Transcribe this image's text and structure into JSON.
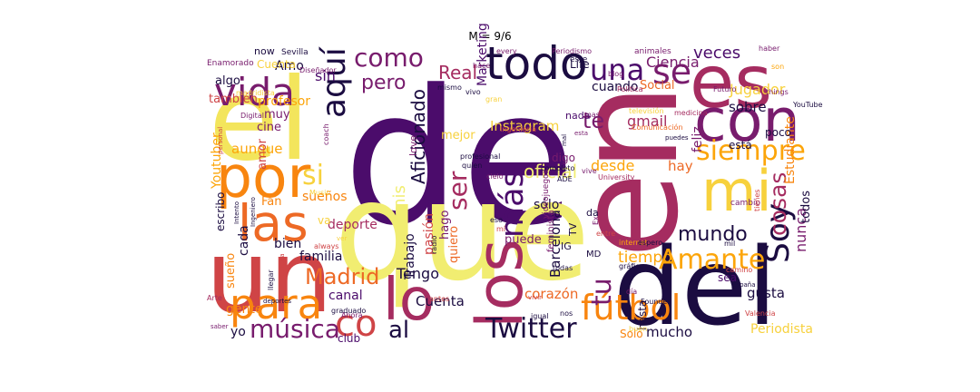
{
  "title": "M = 9/6",
  "palette": {
    "deep_purple": "#4b0c6b",
    "plum": "#781c6d",
    "magenta": "#a52c60",
    "crimson": "#cf4446",
    "orange": "#ed6925",
    "amber": "#fb9b06",
    "gold": "#f7d13d",
    "pale_yellow": "#fcffa4",
    "black": "#000004",
    "navy": "#1b0c41"
  },
  "words": [
    {
      "text": "de",
      "color": "#4b0c6b"
    },
    {
      "text": "en",
      "color": "#a52c60"
    },
    {
      "text": "que",
      "color": "#f1ed71"
    },
    {
      "text": "el",
      "color": "#f3e55c"
    },
    {
      "text": "del",
      "color": "#1b0c41"
    },
    {
      "text": "un",
      "color": "#cf4446"
    },
    {
      "text": "por",
      "color": "#f8850f"
    },
    {
      "text": "es",
      "color": "#a52c60"
    },
    {
      "text": "con",
      "color": "#781c6d"
    },
    {
      "text": "mi",
      "color": "#f7d13d"
    },
    {
      "text": "los",
      "color": "#a52c60"
    },
    {
      "text": "las",
      "color": "#ed6925"
    },
    {
      "text": "todo",
      "color": "#1b0c41"
    },
    {
      "text": "vida",
      "color": "#781c6d"
    },
    {
      "text": "una",
      "color": "#4b0c6b"
    },
    {
      "text": "se",
      "color": "#781c6d"
    },
    {
      "text": "para",
      "color": "#f8850f"
    },
    {
      "text": "lo",
      "color": "#a52c60"
    },
    {
      "text": "co",
      "color": "#cf4446"
    },
    {
      "text": "al",
      "color": "#1b0c41"
    },
    {
      "text": "música",
      "color": "#781c6d"
    },
    {
      "text": "Twitter",
      "color": "#1b0c41"
    },
    {
      "text": "fútbol",
      "color": "#f8850f"
    },
    {
      "text": "tu",
      "color": "#781c6d"
    },
    {
      "text": "más",
      "color": "#4b0c6b"
    },
    {
      "text": "siempre",
      "color": "#fca50a"
    },
    {
      "text": "Soy",
      "color": "#1b0c41"
    },
    {
      "text": "cosas",
      "color": "#a52c60"
    },
    {
      "text": "Amante",
      "color": "#fca50a"
    },
    {
      "text": "mundo",
      "color": "#1b0c41"
    },
    {
      "text": "Madrid",
      "color": "#ed6925"
    },
    {
      "text": "como",
      "color": "#781c6d"
    },
    {
      "text": "pero",
      "color": "#781c6d"
    },
    {
      "text": "Real",
      "color": "#a52c60"
    },
    {
      "text": "aquí",
      "color": "#1b0c41"
    },
    {
      "text": "si",
      "color": "#f7d13d"
    },
    {
      "text": "te",
      "color": "#781c6d"
    },
    {
      "text": "ser",
      "color": "#a52c60"
    },
    {
      "text": "oficial",
      "color": "#f1ed71"
    },
    {
      "text": "mis",
      "color": "#f1ed71"
    },
    {
      "text": "Aficionado",
      "color": "#1b0c41"
    },
    {
      "text": "desde",
      "color": "#fca50a"
    },
    {
      "text": "Marketing",
      "color": "#4b0c6b"
    },
    {
      "text": "Instagram",
      "color": "#f7d13d"
    },
    {
      "text": "gmail",
      "color": "#a52c60"
    },
    {
      "text": "cuando",
      "color": "#1b0c41"
    },
    {
      "text": "Social",
      "color": "#ed6925"
    },
    {
      "text": "Ciencia",
      "color": "#781c6d"
    },
    {
      "text": "veces",
      "color": "#4b0c6b"
    },
    {
      "text": "Jugador",
      "color": "#f7d13d"
    },
    {
      "text": "sobre",
      "color": "#1b0c41"
    },
    {
      "text": "hay",
      "color": "#ed6925"
    },
    {
      "text": "nunca",
      "color": "#781c6d"
    },
    {
      "text": "Estudiante",
      "color": "#f8850f"
    },
    {
      "text": "todos",
      "color": "#1b0c41"
    },
    {
      "text": "tiempo",
      "color": "#fca50a"
    },
    {
      "text": "Tengo",
      "color": "#1b0c41"
    },
    {
      "text": "Cuenta",
      "color": "#1b0c41"
    },
    {
      "text": "corazón",
      "color": "#ed6925"
    },
    {
      "text": "canal",
      "color": "#4b0c6b"
    },
    {
      "text": "Solo",
      "color": "#f8850f"
    },
    {
      "text": "mucho",
      "color": "#1b0c41"
    },
    {
      "text": "Periodista",
      "color": "#f7d13d"
    },
    {
      "text": "gusta",
      "color": "#1b0c41"
    },
    {
      "text": "sea",
      "color": "#4b0c6b"
    },
    {
      "text": "hasta",
      "color": "#1b0c41"
    },
    {
      "text": "Barcelona",
      "color": "#1b0c41"
    },
    {
      "text": "puede",
      "color": "#781c6d"
    },
    {
      "text": "sólo",
      "color": "#1b0c41"
    },
    {
      "text": "hago",
      "color": "#781c6d"
    },
    {
      "text": "quiero",
      "color": "#ed6925"
    },
    {
      "text": "pasión",
      "color": "#cf4446"
    },
    {
      "text": "Trabajo",
      "color": "#1b0c41"
    },
    {
      "text": "deporte",
      "color": "#a52c60"
    },
    {
      "text": "bien",
      "color": "#1b0c41"
    },
    {
      "text": "familia",
      "color": "#1b0c41"
    },
    {
      "text": "cada",
      "color": "#1b0c41"
    },
    {
      "text": "sueño",
      "color": "#f8850f"
    },
    {
      "text": "gente",
      "color": "#f8850f"
    },
    {
      "text": "yo",
      "color": "#1b0c41"
    },
    {
      "text": "club",
      "color": "#4b0c6b"
    },
    {
      "text": "sueños",
      "color": "#f8850f"
    },
    {
      "text": "Fan",
      "color": "#f8850f"
    },
    {
      "text": "escribo",
      "color": "#1b0c41"
    },
    {
      "text": "aunque",
      "color": "#fca50a"
    },
    {
      "text": "Youtuber",
      "color": "#fca50a"
    },
    {
      "text": "profesor",
      "color": "#fca50a"
    },
    {
      "text": "muy",
      "color": "#781c6d"
    },
    {
      "text": "cine",
      "color": "#781c6d"
    },
    {
      "text": "amor",
      "color": "#cf4446"
    },
    {
      "text": "también",
      "color": "#cf4446"
    },
    {
      "text": "Amo",
      "color": "#1b0c41"
    },
    {
      "text": "sin",
      "color": "#4b0c6b"
    },
    {
      "text": "algo",
      "color": "#1b0c41"
    },
    {
      "text": "mejor",
      "color": "#f7d13d"
    },
    {
      "text": "Life",
      "color": "#1b0c41"
    },
    {
      "text": "nada",
      "color": "#4b0c6b"
    },
    {
      "text": "digo",
      "color": "#781c6d"
    },
    {
      "text": "está",
      "color": "#1b0c41"
    },
    {
      "text": "poco",
      "color": "#1b0c41"
    },
    {
      "text": "feliz",
      "color": "#781c6d"
    },
    {
      "text": "va",
      "color": "#f7d13d"
    },
    {
      "text": "da",
      "color": "#1b0c41"
    },
    {
      "text": "MD",
      "color": "#1b0c41"
    },
    {
      "text": "IG",
      "color": "#1b0c41"
    },
    {
      "text": "love",
      "color": "#781c6d"
    },
    {
      "text": "now",
      "color": "#1b0c41"
    },
    {
      "text": "Sevilla",
      "color": "#1b0c41"
    },
    {
      "text": "Enamorado",
      "color": "#781c6d"
    },
    {
      "text": "every",
      "color": "#781c6d"
    },
    {
      "text": "Periodismo",
      "color": "#781c6d"
    },
    {
      "text": "haber",
      "color": "#781c6d"
    },
    {
      "text": "son",
      "color": "#fca50a"
    },
    {
      "text": "things",
      "color": "#781c6d"
    },
    {
      "text": "Futuro",
      "color": "#781c6d"
    },
    {
      "text": "YouTube",
      "color": "#1b0c41"
    },
    {
      "text": "Política",
      "color": "#a52c60"
    },
    {
      "text": "blog",
      "color": "#781c6d"
    },
    {
      "text": "hace",
      "color": "#781c6d"
    },
    {
      "text": "mismo",
      "color": "#1b0c41"
    },
    {
      "text": "vivo",
      "color": "#1b0c41"
    },
    {
      "text": "gran",
      "color": "#f7d13d"
    },
    {
      "text": "Diseñador",
      "color": "#781c6d"
    },
    {
      "text": "madridista",
      "color": "#f7d13d"
    },
    {
      "text": "Digital",
      "color": "#781c6d"
    },
    {
      "text": "personal",
      "color": "#cf4446"
    },
    {
      "text": "coach",
      "color": "#781c6d"
    },
    {
      "text": "Ingeniería",
      "color": "#cf4446"
    },
    {
      "text": "profesional",
      "color": "#1b0c41"
    },
    {
      "text": "quien",
      "color": "#1b0c41"
    },
    {
      "text": "completo",
      "color": "#1b0c41"
    },
    {
      "text": "ADE",
      "color": "#1b0c41"
    },
    {
      "text": "cielo",
      "color": "#781c6d"
    },
    {
      "text": "vive",
      "color": "#781c6d"
    },
    {
      "text": "University",
      "color": "#a52c60"
    },
    {
      "text": "Comunicación",
      "color": "#ed6925"
    },
    {
      "text": "puedes",
      "color": "#1b0c41"
    },
    {
      "text": "medicina",
      "color": "#a52c60"
    },
    {
      "text": "cambio",
      "color": "#781c6d"
    },
    {
      "text": "tienes",
      "color": "#cf4446"
    },
    {
      "text": "mil",
      "color": "#1b0c41"
    },
    {
      "text": "camino",
      "color": "#cf4446"
    },
    {
      "text": "España",
      "color": "#1b0c41"
    },
    {
      "text": "Valencia",
      "color": "#cf4446"
    },
    {
      "text": "buen",
      "color": "#f7d13d"
    },
    {
      "text": "Founder",
      "color": "#1b0c41"
    },
    {
      "text": "día",
      "color": "#781c6d"
    },
    {
      "text": "nos",
      "color": "#1b0c41"
    },
    {
      "text": "igual",
      "color": "#1b0c41"
    },
    {
      "text": "Ahora",
      "color": "#781c6d"
    },
    {
      "text": "graduado",
      "color": "#1b0c41"
    },
    {
      "text": "deportes",
      "color": "#1b0c41"
    },
    {
      "text": "Arte",
      "color": "#a52c60"
    },
    {
      "text": "saber",
      "color": "#781c6d"
    },
    {
      "text": "eso",
      "color": "#1b0c41"
    },
    {
      "text": "ver",
      "color": "#f7d13d"
    },
    {
      "text": "always",
      "color": "#cf4446"
    },
    {
      "text": "Cultura",
      "color": "#cf4446"
    },
    {
      "text": "llegar",
      "color": "#1b0c41"
    },
    {
      "text": "Ingeniero",
      "color": "#1b0c41"
    },
    {
      "text": "Intento",
      "color": "#1b0c41"
    },
    {
      "text": "Music",
      "color": "#f7d13d"
    },
    {
      "text": "entre",
      "color": "#cf4446"
    },
    {
      "text": "feminista",
      "color": "#781c6d"
    },
    {
      "text": "todas",
      "color": "#1b0c41"
    },
    {
      "text": "vivir",
      "color": "#cf4446"
    },
    {
      "text": "antes",
      "color": "#cf4446"
    },
    {
      "text": "radio",
      "color": "#1b0c41"
    },
    {
      "text": "Ex",
      "color": "#781c6d"
    },
    {
      "text": "internet",
      "color": "#fca50a"
    },
    {
      "text": "espero",
      "color": "#1b0c41"
    },
    {
      "text": "gráfico",
      "color": "#1b0c41"
    },
    {
      "text": "videojuegos",
      "color": "#781c6d"
    },
    {
      "text": "mal",
      "color": "#1b0c41"
    },
    {
      "text": "esta",
      "color": "#781c6d"
    },
    {
      "text": "televisión",
      "color": "#f7d13d"
    },
    {
      "text": "este",
      "color": "#1b0c41"
    },
    {
      "text": "animales",
      "color": "#781c6d"
    },
    {
      "text": "mas",
      "color": "#781c6d"
    },
    {
      "text": "mí",
      "color": "#cf4446"
    },
    {
      "text": "TV",
      "color": "#1b0c41"
    },
    {
      "text": "Cuenta ",
      "color": "#f7d13d"
    },
    {
      "text": "español",
      "color": "#f7d13d"
    },
    {
      "text": "ni",
      "color": "#f7d13d"
    }
  ]
}
